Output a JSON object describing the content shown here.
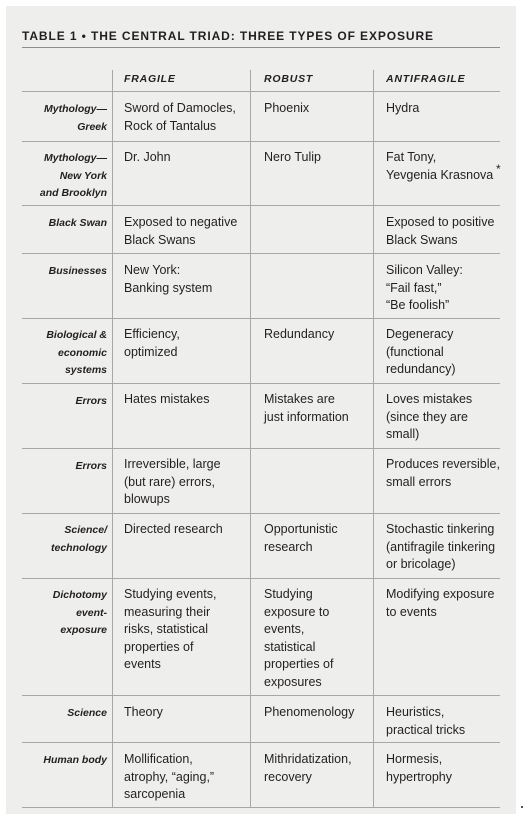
{
  "table": {
    "title": "TABLE 1  •  THE CENTRAL TRIAD: THREE TYPES OF EXPOSURE",
    "columns": [
      "FRAGILE",
      "ROBUST",
      "ANTIFRAGILE"
    ],
    "footnote_mark": "*",
    "rows": [
      {
        "label": "Mythology—\nGreek",
        "fragile": "Sword of Damocles,\nRock of Tantalus",
        "robust": "Phoenix",
        "antifragile": "Hydra"
      },
      {
        "label": "Mythology—\nNew York\nand Brooklyn",
        "fragile": "Dr. John",
        "robust": "Nero Tulip",
        "antifragile": "Fat Tony,\nYevgenia Krasnova"
      },
      {
        "label": "Black Swan",
        "fragile": "Exposed to negative\nBlack Swans",
        "robust": "",
        "antifragile": "Exposed to positive\nBlack Swans"
      },
      {
        "label": "Businesses",
        "fragile": "New York:\nBanking system",
        "robust": "",
        "antifragile": "Silicon Valley:\n“Fail fast,”\n“Be foolish”"
      },
      {
        "label": "Biological &\neconomic\nsystems",
        "fragile": "Efficiency,\noptimized",
        "robust": "Redundancy",
        "antifragile": "Degeneracy\n(functional\nredundancy)"
      },
      {
        "label": "Errors",
        "fragile": "Hates mistakes",
        "robust": "Mistakes are\njust information",
        "antifragile": "Loves mistakes\n(since they are\nsmall)"
      },
      {
        "label": "Errors",
        "fragile": "Irreversible, large\n(but rare) errors,\nblowups",
        "robust": "",
        "antifragile": "Produces reversible,\nsmall errors"
      },
      {
        "label": "Science/\ntechnology",
        "fragile": "Directed research",
        "robust": "Opportunistic\nresearch",
        "antifragile": "Stochastic tinkering\n(antifragile tinkering\nor bricolage)"
      },
      {
        "label": "Dichotomy\nevent-\nexposure",
        "fragile": "Studying events,\nmeasuring their\nrisks, statistical\nproperties of\nevents",
        "robust": "Studying\nexposure to\nevents,\nstatistical\nproperties of\nexposures",
        "antifragile": "Modifying exposure\nto events"
      },
      {
        "label": "Science",
        "fragile": "Theory",
        "robust": "Phenomenology",
        "antifragile": "Heuristics,\npractical tricks"
      },
      {
        "label": "Human body",
        "fragile": "Mollification,\natrophy, “aging,”\nsarcopenia",
        "robust": "Mithridatization,\nrecovery",
        "antifragile": "Hormesis,\nhypertrophy"
      }
    ]
  }
}
